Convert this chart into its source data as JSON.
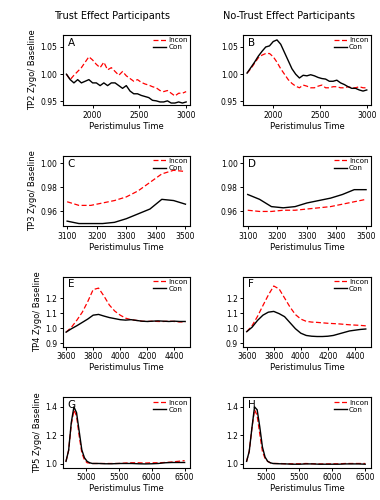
{
  "title_left": "Trust Effect Participants",
  "title_right": "No-Trust Effect Participants",
  "xlabel": "Peristimulus Time",
  "ylabel_tp2": "TP2 Zygo/ Baseline",
  "ylabel_tp3": "TP3 Zygo/ Baseline",
  "ylabel_tp4": "TP4 Zygo/ Baseline",
  "ylabel_tp5": "TP5 Zygo/ Baseline",
  "legend_incon": "Incon",
  "legend_con": "Con",
  "incon_color": "#FF0000",
  "con_color": "#000000",
  "panels": {
    "A": {
      "xlim": [
        1680,
        3040
      ],
      "ylim": [
        0.943,
        1.072
      ],
      "yticks": [
        0.95,
        1.0,
        1.05
      ],
      "xticks": [
        2000,
        2500,
        3000
      ],
      "incon_x": [
        1720,
        1760,
        1800,
        1840,
        1880,
        1920,
        1960,
        2000,
        2040,
        2080,
        2120,
        2160,
        2200,
        2240,
        2280,
        2320,
        2360,
        2400,
        2440,
        2480,
        2520,
        2560,
        2600,
        2640,
        2680,
        2720,
        2760,
        2800,
        2840,
        2880,
        2920,
        2960,
        3000
      ],
      "incon_y": [
        1.0,
        0.99,
        0.998,
        1.005,
        1.012,
        1.022,
        1.032,
        1.026,
        1.018,
        1.012,
        1.022,
        1.008,
        1.012,
        1.005,
        0.998,
        1.005,
        0.997,
        0.992,
        0.987,
        0.99,
        0.985,
        0.982,
        0.98,
        0.977,
        0.975,
        0.97,
        0.968,
        0.97,
        0.965,
        0.96,
        0.965,
        0.965,
        0.968
      ],
      "con_x": [
        1720,
        1760,
        1800,
        1840,
        1880,
        1920,
        1960,
        2000,
        2040,
        2080,
        2120,
        2160,
        2200,
        2240,
        2280,
        2320,
        2360,
        2400,
        2440,
        2480,
        2520,
        2560,
        2600,
        2640,
        2680,
        2720,
        2760,
        2800,
        2840,
        2880,
        2920,
        2960,
        3000
      ],
      "con_y": [
        1.0,
        0.99,
        0.984,
        0.99,
        0.984,
        0.987,
        0.99,
        0.984,
        0.984,
        0.979,
        0.984,
        0.979,
        0.984,
        0.984,
        0.979,
        0.974,
        0.979,
        0.969,
        0.964,
        0.964,
        0.961,
        0.959,
        0.957,
        0.952,
        0.951,
        0.949,
        0.949,
        0.951,
        0.947,
        0.947,
        0.949,
        0.947,
        0.949
      ]
    },
    "B": {
      "xlim": [
        1680,
        3040
      ],
      "ylim": [
        0.943,
        1.072
      ],
      "yticks": [
        0.95,
        1.0,
        1.05
      ],
      "xticks": [
        2000,
        2500,
        3000
      ],
      "incon_x": [
        1720,
        1760,
        1800,
        1840,
        1880,
        1920,
        1960,
        2000,
        2040,
        2080,
        2120,
        2160,
        2200,
        2240,
        2280,
        2320,
        2360,
        2400,
        2440,
        2480,
        2520,
        2560,
        2600,
        2640,
        2680,
        2720,
        2760,
        2800,
        2840,
        2880,
        2920,
        2960,
        3000
      ],
      "incon_y": [
        1.002,
        1.01,
        1.02,
        1.03,
        1.035,
        1.038,
        1.038,
        1.032,
        1.022,
        1.01,
        1.0,
        0.99,
        0.983,
        0.978,
        0.975,
        0.98,
        0.978,
        0.975,
        0.975,
        0.978,
        0.98,
        0.975,
        0.975,
        0.977,
        0.977,
        0.975,
        0.975,
        0.977,
        0.975,
        0.975,
        0.977,
        0.975,
        0.975
      ],
      "con_x": [
        1720,
        1760,
        1800,
        1840,
        1880,
        1920,
        1960,
        2000,
        2040,
        2080,
        2120,
        2160,
        2200,
        2240,
        2280,
        2320,
        2360,
        2400,
        2440,
        2480,
        2520,
        2560,
        2600,
        2640,
        2680,
        2720,
        2760,
        2800,
        2840,
        2880,
        2920,
        2960,
        3000
      ],
      "con_y": [
        1.002,
        1.012,
        1.022,
        1.033,
        1.042,
        1.05,
        1.052,
        1.06,
        1.063,
        1.055,
        1.04,
        1.025,
        1.01,
        1.0,
        0.993,
        0.998,
        0.997,
        0.999,
        0.997,
        0.994,
        0.992,
        0.991,
        0.987,
        0.987,
        0.989,
        0.984,
        0.981,
        0.977,
        0.974,
        0.974,
        0.971,
        0.969,
        0.971
      ]
    },
    "C": {
      "xlim": [
        3085,
        3515
      ],
      "ylim": [
        0.948,
        1.006
      ],
      "yticks": [
        0.96,
        0.98,
        1.0
      ],
      "xticks": [
        3100,
        3200,
        3300,
        3400,
        3500
      ],
      "incon_x": [
        3100,
        3140,
        3180,
        3220,
        3260,
        3300,
        3340,
        3380,
        3420,
        3460,
        3500
      ],
      "incon_y": [
        0.968,
        0.965,
        0.965,
        0.967,
        0.969,
        0.972,
        0.977,
        0.984,
        0.991,
        0.994,
        0.993
      ],
      "con_x": [
        3100,
        3140,
        3180,
        3220,
        3260,
        3300,
        3340,
        3380,
        3420,
        3460,
        3500
      ],
      "con_y": [
        0.952,
        0.95,
        0.95,
        0.95,
        0.951,
        0.954,
        0.958,
        0.962,
        0.97,
        0.969,
        0.966
      ]
    },
    "D": {
      "xlim": [
        3085,
        3515
      ],
      "ylim": [
        0.948,
        1.006
      ],
      "yticks": [
        0.96,
        0.98,
        1.0
      ],
      "xticks": [
        3100,
        3200,
        3300,
        3400,
        3500
      ],
      "incon_x": [
        3100,
        3140,
        3180,
        3220,
        3260,
        3300,
        3340,
        3380,
        3420,
        3460,
        3500
      ],
      "incon_y": [
        0.961,
        0.96,
        0.96,
        0.961,
        0.961,
        0.962,
        0.963,
        0.964,
        0.966,
        0.968,
        0.97
      ],
      "con_x": [
        3100,
        3140,
        3180,
        3220,
        3260,
        3300,
        3340,
        3380,
        3420,
        3460,
        3500
      ],
      "con_y": [
        0.974,
        0.97,
        0.964,
        0.963,
        0.964,
        0.967,
        0.969,
        0.971,
        0.974,
        0.978,
        0.978
      ]
    },
    "E": {
      "xlim": [
        3575,
        4515
      ],
      "ylim": [
        0.878,
        1.345
      ],
      "yticks": [
        0.9,
        1.0,
        1.1,
        1.2
      ],
      "xticks": [
        3600,
        3800,
        4000,
        4200,
        4400
      ],
      "incon_x": [
        3600,
        3640,
        3680,
        3720,
        3760,
        3800,
        3840,
        3880,
        3920,
        3960,
        4000,
        4040,
        4080,
        4120,
        4160,
        4200,
        4240,
        4280,
        4320,
        4360,
        4400,
        4440,
        4480
      ],
      "incon_y": [
        0.975,
        1.008,
        1.055,
        1.108,
        1.178,
        1.258,
        1.268,
        1.215,
        1.155,
        1.115,
        1.088,
        1.068,
        1.058,
        1.053,
        1.048,
        1.046,
        1.048,
        1.046,
        1.046,
        1.048,
        1.046,
        1.043,
        1.043
      ],
      "con_x": [
        3600,
        3640,
        3680,
        3720,
        3760,
        3800,
        3840,
        3880,
        3920,
        3960,
        4000,
        4040,
        4080,
        4120,
        4160,
        4200,
        4240,
        4280,
        4320,
        4360,
        4400,
        4440,
        4480
      ],
      "con_y": [
        0.975,
        0.998,
        1.018,
        1.04,
        1.062,
        1.088,
        1.093,
        1.082,
        1.072,
        1.065,
        1.058,
        1.055,
        1.058,
        1.053,
        1.048,
        1.046,
        1.048,
        1.05,
        1.048,
        1.046,
        1.048,
        1.046,
        1.046
      ]
    },
    "F": {
      "xlim": [
        3575,
        4515
      ],
      "ylim": [
        0.878,
        1.345
      ],
      "yticks": [
        0.9,
        1.0,
        1.1,
        1.2
      ],
      "xticks": [
        3600,
        3800,
        4000,
        4200,
        4400
      ],
      "incon_x": [
        3600,
        3640,
        3680,
        3720,
        3760,
        3800,
        3840,
        3880,
        3920,
        3960,
        4000,
        4040,
        4080,
        4120,
        4160,
        4200,
        4240,
        4280,
        4320,
        4360,
        4400,
        4440,
        4480
      ],
      "incon_y": [
        0.978,
        1.018,
        1.08,
        1.152,
        1.222,
        1.282,
        1.262,
        1.202,
        1.142,
        1.092,
        1.062,
        1.047,
        1.042,
        1.04,
        1.037,
        1.034,
        1.032,
        1.03,
        1.027,
        1.024,
        1.022,
        1.02,
        1.017
      ],
      "con_x": [
        3600,
        3640,
        3680,
        3720,
        3760,
        3800,
        3840,
        3880,
        3920,
        3960,
        4000,
        4040,
        4080,
        4120,
        4160,
        4200,
        4240,
        4280,
        4320,
        4360,
        4400,
        4440,
        4480
      ],
      "con_y": [
        0.978,
        1.008,
        1.053,
        1.088,
        1.108,
        1.113,
        1.098,
        1.078,
        1.038,
        0.998,
        0.968,
        0.953,
        0.948,
        0.946,
        0.946,
        0.948,
        0.953,
        0.963,
        0.973,
        0.983,
        0.988,
        0.993,
        0.996
      ]
    },
    "G": {
      "xlim": [
        4650,
        6580
      ],
      "ylim": [
        0.975,
        1.465
      ],
      "yticks": [
        1.0,
        1.2,
        1.4
      ],
      "xticks": [
        5000,
        5500,
        6000,
        6500
      ],
      "incon_x": [
        4700,
        4740,
        4780,
        4820,
        4860,
        4900,
        4940,
        4980,
        5020,
        5060,
        5100,
        5200,
        5300,
        5400,
        5500,
        5600,
        5700,
        5800,
        5900,
        6000,
        6100,
        6200,
        6300,
        6400,
        6500
      ],
      "incon_y": [
        1.018,
        1.095,
        1.275,
        1.375,
        1.335,
        1.195,
        1.078,
        1.028,
        1.008,
        1.006,
        1.003,
        1.003,
        1.003,
        1.003,
        1.003,
        1.006,
        1.008,
        1.008,
        1.006,
        1.008,
        1.008,
        1.01,
        1.013,
        1.018,
        1.023
      ],
      "con_x": [
        4700,
        4740,
        4780,
        4820,
        4860,
        4900,
        4940,
        4980,
        5020,
        5060,
        5100,
        5200,
        5300,
        5400,
        5500,
        5600,
        5700,
        5800,
        5900,
        6000,
        6100,
        6200,
        6300,
        6400,
        6500
      ],
      "con_y": [
        1.018,
        1.095,
        1.288,
        1.398,
        1.358,
        1.228,
        1.098,
        1.043,
        1.018,
        1.008,
        1.003,
        1.003,
        1.001,
        1.001,
        1.003,
        1.003,
        1.003,
        1.001,
        1.0,
        1.001,
        1.003,
        1.008,
        1.01,
        1.01,
        1.01
      ]
    },
    "H": {
      "xlim": [
        4650,
        6580
      ],
      "ylim": [
        0.975,
        1.465
      ],
      "yticks": [
        1.0,
        1.2,
        1.4
      ],
      "xticks": [
        5000,
        5500,
        6000,
        6500
      ],
      "incon_x": [
        4700,
        4740,
        4780,
        4820,
        4860,
        4900,
        4940,
        4980,
        5020,
        5060,
        5100,
        5200,
        5300,
        5400,
        5500,
        5600,
        5700,
        5800,
        5900,
        6000,
        6100,
        6200,
        6300,
        6400,
        6500
      ],
      "incon_y": [
        1.018,
        1.088,
        1.248,
        1.378,
        1.338,
        1.208,
        1.088,
        1.038,
        1.018,
        1.008,
        1.003,
        1.003,
        1.001,
        1.001,
        1.001,
        1.003,
        1.001,
        1.0,
        1.0,
        1.001,
        1.001,
        1.003,
        1.003,
        1.003,
        1.003
      ],
      "con_x": [
        4700,
        4740,
        4780,
        4820,
        4860,
        4900,
        4940,
        4980,
        5020,
        5060,
        5100,
        5200,
        5300,
        5400,
        5500,
        5600,
        5700,
        5800,
        5900,
        6000,
        6100,
        6200,
        6300,
        6400,
        6500
      ],
      "con_y": [
        1.018,
        1.088,
        1.248,
        1.398,
        1.378,
        1.258,
        1.118,
        1.048,
        1.018,
        1.008,
        1.003,
        1.001,
        1.0,
        0.998,
        0.998,
        1.0,
        1.0,
        0.998,
        0.998,
        0.998,
        0.998,
        1.0,
        1.0,
        1.0,
        0.998
      ]
    }
  }
}
